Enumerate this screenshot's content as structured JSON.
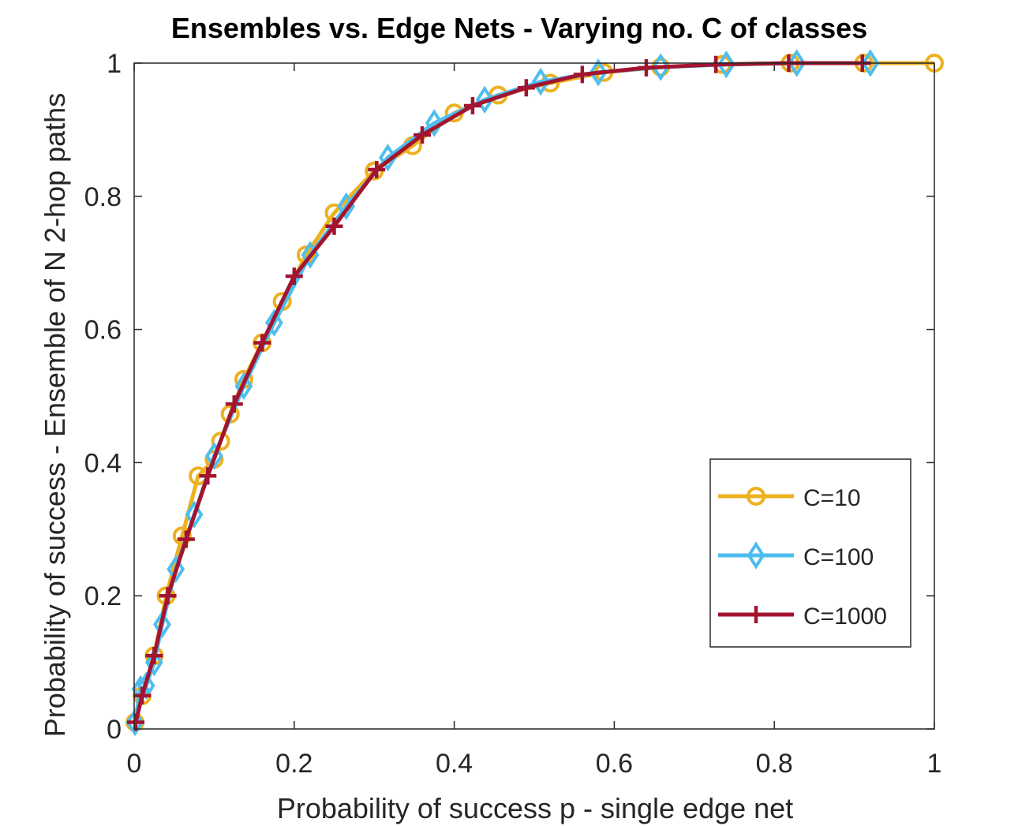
{
  "chart_data": {
    "type": "line",
    "title": "Ensembles vs. Edge Nets - Varying no. C of classes",
    "xlabel": "Probability of success p - single edge net",
    "ylabel": "Probability of success - Ensemble of N 2-hop paths",
    "xlim": [
      0,
      1
    ],
    "ylim": [
      0,
      1
    ],
    "xticks": [
      0,
      0.2,
      0.4,
      0.6,
      0.8,
      1
    ],
    "xtick_labels": [
      "0",
      "0.2",
      "0.4",
      "0.6",
      "0.8",
      "1"
    ],
    "yticks": [
      0,
      0.2,
      0.4,
      0.6,
      0.8,
      1
    ],
    "ytick_labels": [
      "0",
      "0.2",
      "0.4",
      "0.6",
      "0.8",
      "1"
    ],
    "grid": false,
    "legend_position": "lower-right",
    "series": [
      {
        "name": "C=10",
        "color": "#EDB120",
        "marker": "circle",
        "x": [
          0.001,
          0.01,
          0.025,
          0.04,
          0.06,
          0.08,
          0.1,
          0.108,
          0.12,
          0.137,
          0.16,
          0.185,
          0.215,
          0.25,
          0.3,
          0.348,
          0.4,
          0.455,
          0.52,
          0.587,
          0.658,
          0.735,
          0.82,
          0.912,
          1.0
        ],
        "y": [
          0.01,
          0.05,
          0.11,
          0.2,
          0.29,
          0.38,
          0.405,
          0.432,
          0.473,
          0.525,
          0.58,
          0.642,
          0.712,
          0.775,
          0.838,
          0.876,
          0.925,
          0.952,
          0.97,
          0.986,
          0.994,
          0.998,
          1.0,
          1.0,
          1.0
        ]
      },
      {
        "name": "C=100",
        "color": "#4DBEEE",
        "marker": "diamond",
        "x": [
          0.001,
          0.008,
          0.015,
          0.025,
          0.035,
          0.052,
          0.075,
          0.1,
          0.137,
          0.175,
          0.22,
          0.265,
          0.317,
          0.375,
          0.438,
          0.508,
          0.58,
          0.658,
          0.74,
          0.828,
          0.92
        ],
        "y": [
          0.01,
          0.06,
          0.065,
          0.1,
          0.157,
          0.24,
          0.322,
          0.41,
          0.515,
          0.61,
          0.712,
          0.785,
          0.858,
          0.91,
          0.945,
          0.972,
          0.986,
          0.994,
          0.998,
          1.0,
          1.0
        ]
      },
      {
        "name": "C=1000",
        "color": "#A2142F",
        "marker": "plus",
        "x": [
          0.002,
          0.01,
          0.025,
          0.042,
          0.065,
          0.092,
          0.125,
          0.16,
          0.2,
          0.25,
          0.303,
          0.36,
          0.423,
          0.49,
          0.56,
          0.64,
          0.727,
          0.818,
          0.91
        ],
        "y": [
          0.01,
          0.05,
          0.11,
          0.2,
          0.285,
          0.38,
          0.488,
          0.58,
          0.68,
          0.755,
          0.84,
          0.892,
          0.936,
          0.963,
          0.983,
          0.993,
          0.998,
          1.0,
          1.0
        ]
      }
    ]
  }
}
